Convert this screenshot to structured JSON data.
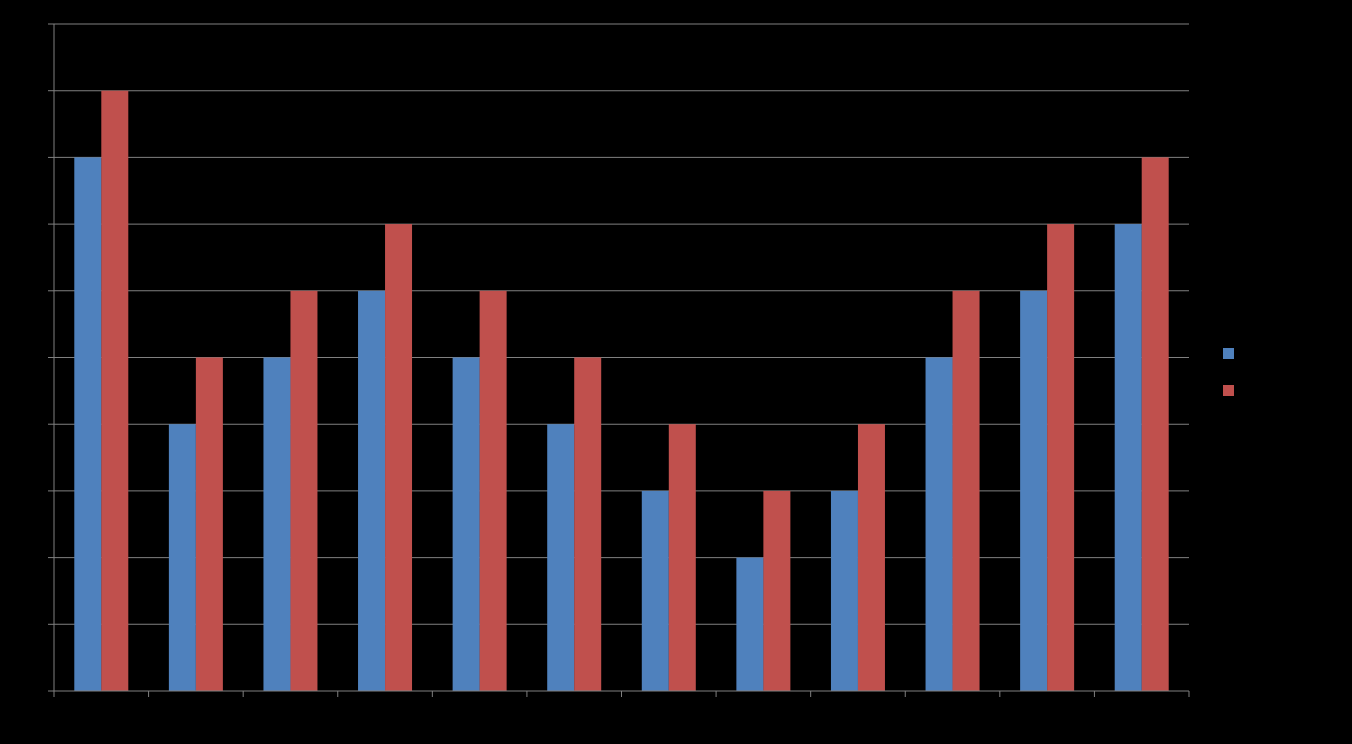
{
  "chart_data": {
    "type": "bar",
    "title": "",
    "xlabel": "",
    "ylabel": "",
    "categories": [
      "",
      "",
      "",
      "",
      "",
      "",
      "",
      "",
      "",
      "",
      "",
      ""
    ],
    "ylim": [
      0,
      10
    ],
    "y_tick_step": 1,
    "grid": true,
    "legend_position": "right",
    "background": "#000000",
    "gridline_color": "#808080",
    "axis_color": "#808080",
    "series": [
      {
        "name": "",
        "color": "#4f81bd",
        "values": [
          8,
          4,
          5,
          6,
          5,
          4,
          3,
          2,
          3,
          5,
          6,
          7
        ]
      },
      {
        "name": "",
        "color": "#c0504d",
        "values": [
          9,
          5,
          6,
          7,
          6,
          5,
          4,
          3,
          4,
          6,
          7,
          8
        ]
      }
    ]
  }
}
